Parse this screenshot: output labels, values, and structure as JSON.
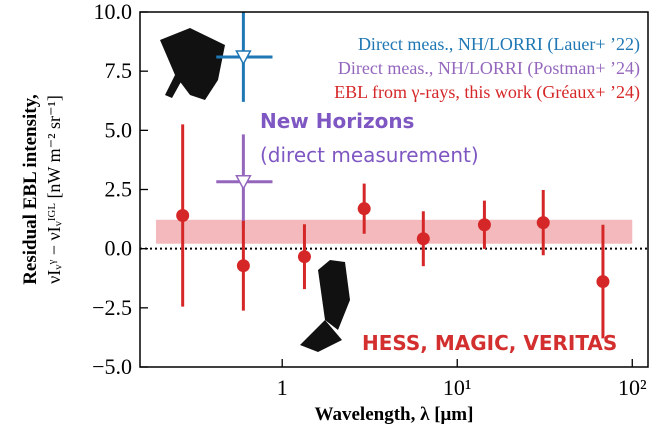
{
  "chart_data": {
    "type": "errorbar",
    "ylabel": [
      "Residual EBL intensity,",
      "νIᵥᵞ − νIᵥᴵᴳᴸ [nW m⁻² sr⁻¹]"
    ],
    "xlabel": "Wavelength, λ [μm]",
    "xscale": "log",
    "xlim": [
      0.154,
      123
    ],
    "ylim": [
      -5,
      10
    ],
    "xticks": [
      1,
      {
        "value": 10,
        "label": "10¹"
      },
      {
        "value": 100,
        "label": "10²"
      }
    ],
    "yticks": [
      {
        "value": -5,
        "label": "−5.0"
      },
      {
        "value": -2.5,
        "label": "−2.5"
      },
      {
        "value": 0,
        "label": "0.0"
      },
      {
        "value": 2.5,
        "label": "2.5"
      },
      {
        "value": 5,
        "label": "5.0"
      },
      {
        "value": 7.5,
        "label": "7.5"
      },
      {
        "value": 10,
        "label": "10.0"
      }
    ],
    "hline": 0,
    "band": {
      "x": [
        0.19,
        100
      ],
      "y": [
        0.21,
        1.22
      ],
      "color": "#f0a8ab"
    },
    "series": [
      {
        "name": "Direct meas., NH/LORRI (Lauer+ ’22)",
        "color": "#1f77b4",
        "marker": "triangle",
        "x": [
          0.6
        ],
        "values": [
          8.1
        ],
        "yerr": [
          1.9
        ],
        "xrange": [
          [
            0.42,
            0.88
          ]
        ]
      },
      {
        "name": "Direct meas., NH/LORRI (Postman+ ’24)",
        "color": "#9467bd",
        "marker": "triangle",
        "x": [
          0.6
        ],
        "values": [
          2.83
        ],
        "yerr": [
          2.0
        ],
        "xrange": [
          [
            0.42,
            0.88
          ]
        ]
      },
      {
        "name": "EBL from γ-rays, this work (Gréaux+ ’24)",
        "color": "#d62728",
        "marker": "circle",
        "x": [
          0.27,
          0.6,
          1.34,
          2.94,
          6.4,
          14.3,
          31,
          68
        ],
        "values": [
          1.4,
          -0.72,
          -0.34,
          1.69,
          0.42,
          1.01,
          1.1,
          -1.39
        ],
        "yerr": [
          3.85,
          1.9,
          1.37,
          1.06,
          1.16,
          1.02,
          1.38,
          2.4
        ]
      }
    ],
    "annotations": [
      {
        "text": "New Horizons",
        "color": "#7e57c2"
      },
      {
        "text": "(direct measurement)",
        "color": "#7e57c2"
      },
      {
        "text": "HESS, MAGIC, VERITAS",
        "color": "#d32f2f"
      }
    ]
  }
}
